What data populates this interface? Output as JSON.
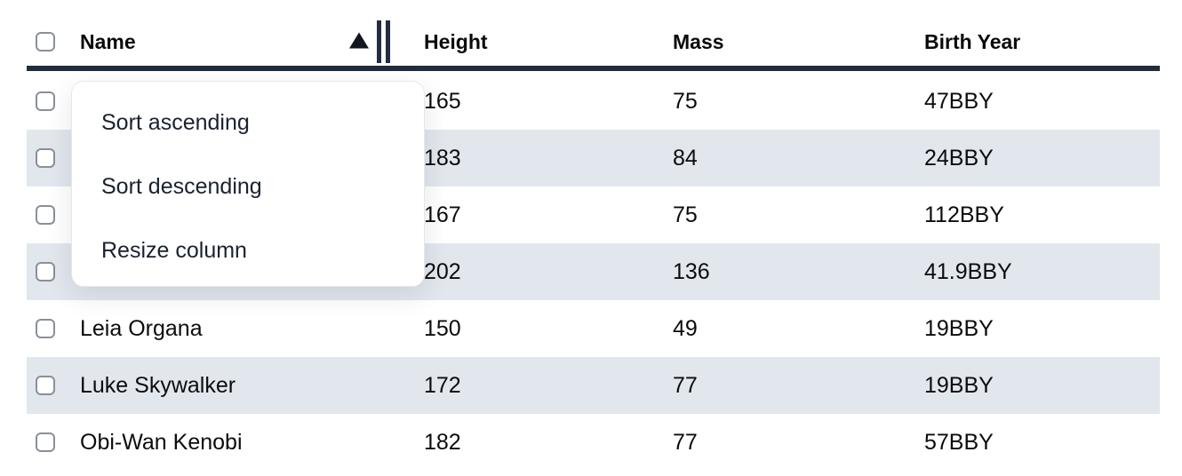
{
  "table": {
    "columns": [
      {
        "label": "Name"
      },
      {
        "label": "Height"
      },
      {
        "label": "Mass"
      },
      {
        "label": "Birth Year"
      }
    ],
    "sort": {
      "column": "Name",
      "direction": "ascending"
    },
    "rows": [
      {
        "name": "",
        "height": "165",
        "mass": "75",
        "birth_year": "47BBY"
      },
      {
        "name": "",
        "height": "183",
        "mass": "84",
        "birth_year": "24BBY"
      },
      {
        "name": "",
        "height": "167",
        "mass": "75",
        "birth_year": "112BBY"
      },
      {
        "name": "",
        "height": "202",
        "mass": "136",
        "birth_year": "41.9BBY"
      },
      {
        "name": "Leia Organa",
        "height": "150",
        "mass": "49",
        "birth_year": "19BBY"
      },
      {
        "name": "Luke Skywalker",
        "height": "172",
        "mass": "77",
        "birth_year": "19BBY"
      },
      {
        "name": "Obi-Wan Kenobi",
        "height": "182",
        "mass": "77",
        "birth_year": "57BBY"
      }
    ]
  },
  "context_menu": {
    "items": [
      {
        "label": "Sort ascending"
      },
      {
        "label": "Sort descending"
      },
      {
        "label": "Resize column"
      }
    ]
  },
  "icons": {
    "sort_indicator": "ascending-triangle",
    "column_resize": "double-vertical-bars",
    "checkbox": "unchecked-rounded-square"
  },
  "colors": {
    "row_stripe": "#e2e7ee",
    "header_border": "#212c3f",
    "cell_text": "#0c0c0e",
    "menu_text": "#1a2130",
    "menu_border": "#e7e7ea",
    "checkbox_border": "#8a909a",
    "background": "#ffffff"
  }
}
